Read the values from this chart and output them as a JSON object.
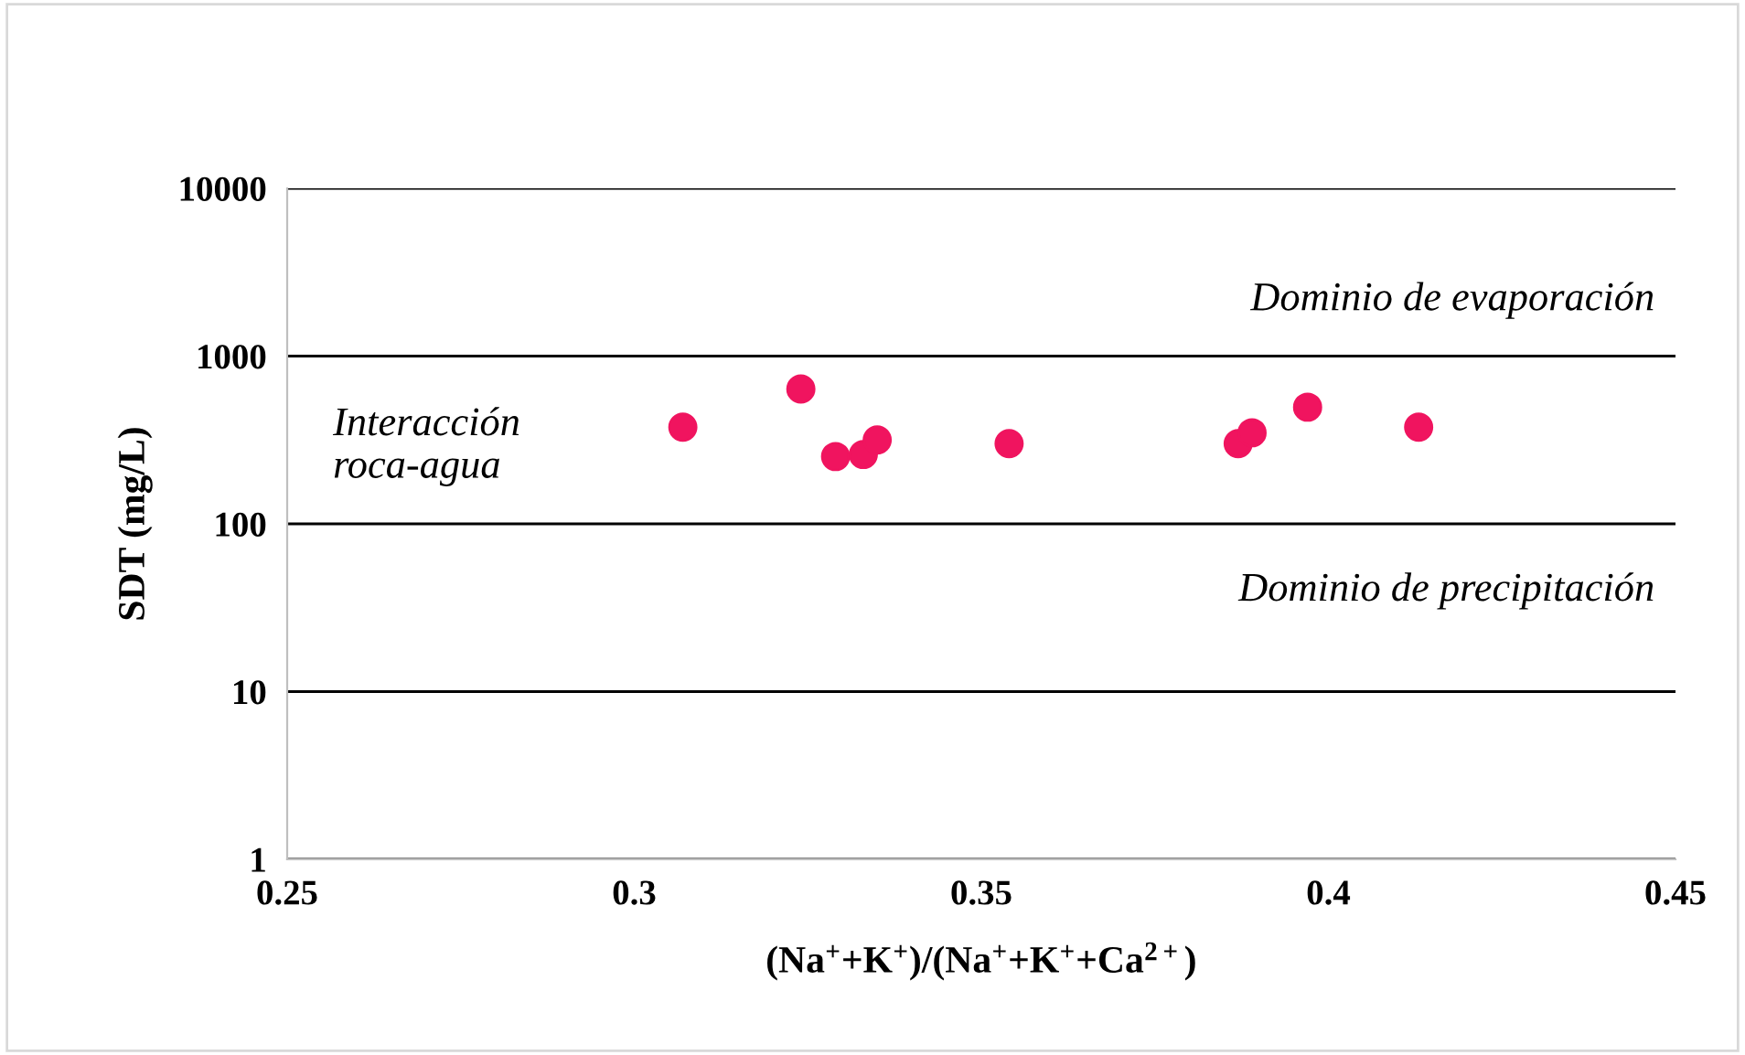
{
  "chart_data": {
    "type": "scatter",
    "xlabel": "(Na$^{+}$+K$^{+}$)/(Na$^{+}$+K$^{+}$+Ca$^{2+}$)",
    "ylabel": "SDT (mg/L)",
    "x": [
      0.307,
      0.324,
      0.329,
      0.333,
      0.335,
      0.354,
      0.387,
      0.389,
      0.397,
      0.413
    ],
    "series": [
      {
        "color": "#f0145f",
        "values": [
          377,
          637,
          252,
          259,
          316,
          301,
          301,
          349,
          496,
          377
        ]
      }
    ],
    "xlim": [
      0.25,
      0.45
    ],
    "xticks": [
      0.25,
      0.3,
      0.35,
      0.4,
      0.45
    ],
    "log": "y",
    "ylim": [
      1,
      10000
    ],
    "yticks": [
      1,
      10,
      100,
      1000,
      10000
    ],
    "grid": "y",
    "marker": "circle",
    "legend": false,
    "annotations": [
      "Dominio de evaporación",
      "Interacción\nroca-agua",
      "Dominio de precipitación"
    ]
  }
}
